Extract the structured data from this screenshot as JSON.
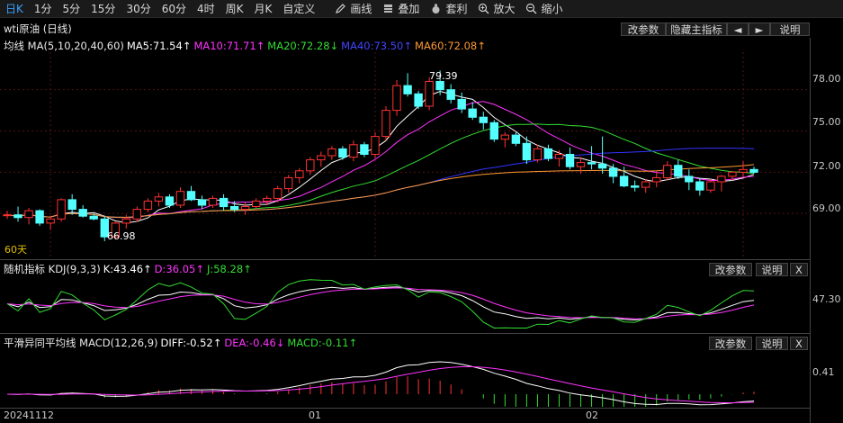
{
  "toolbar": {
    "items": [
      "日K",
      "1分",
      "5分",
      "15分",
      "30分",
      "60分",
      "4时",
      "周K",
      "月K",
      "自定义"
    ],
    "draw": "画线",
    "overlay": "叠加",
    "arbitrage": "套利",
    "zoom_in": "放大",
    "zoom_out": "缩小"
  },
  "main": {
    "title": "wti原油 (日线)",
    "buttons": {
      "params": "改参数",
      "hide": "隐藏主指标",
      "prev": "◄",
      "next": "►",
      "help": "说明"
    },
    "ma_label": "均线 MA(5,10,20,40,60)",
    "ma5": "MA5:71.54↑",
    "ma10": "MA10:71.71↑",
    "ma20": "MA20:72.28↓",
    "ma40": "MA40:73.50↑",
    "ma60": "MA60:72.08↑",
    "high_label": "79.39",
    "low_label": "66.98",
    "days_label": "60天",
    "y_ticks": [
      "78.00",
      "75.00",
      "72.00",
      "69.00"
    ]
  },
  "kdj": {
    "title": "随机指标 KDJ(9,3,3)",
    "k": "K:43.46↑",
    "d": "D:36.05↑",
    "j": "J:58.28↑",
    "buttons": {
      "params": "改参数",
      "help": "说明",
      "close": "X"
    },
    "y_tick": "47.30"
  },
  "macd": {
    "title": "平滑异同平均线 MACD(12,26,9)",
    "diff": "DIFF:-0.52↑",
    "dea": "DEA:-0.46↓",
    "macd": "MACD:-0.11↑",
    "buttons": {
      "params": "改参数",
      "help": "说明",
      "close": "X"
    },
    "y_tick": "0.41"
  },
  "xaxis": {
    "labels": [
      "20241112",
      "01",
      "02"
    ]
  },
  "colors": {
    "up": "#ff3232",
    "down": "#54ffff",
    "ma5": "#ffffff",
    "ma10": "#ff33ff",
    "ma20": "#33dd33",
    "ma40": "#3333ff",
    "ma60": "#ff9933",
    "grid": "#551111"
  },
  "candles": [
    [
      68.9,
      69.2,
      68.6,
      68.9
    ],
    [
      68.9,
      69.5,
      68.4,
      68.7
    ],
    [
      68.7,
      69.4,
      68.2,
      69.2
    ],
    [
      69.2,
      69.3,
      68.1,
      68.3
    ],
    [
      68.3,
      68.8,
      67.8,
      68.6
    ],
    [
      68.6,
      70.1,
      68.4,
      70.0
    ],
    [
      70.0,
      70.4,
      68.9,
      69.3
    ],
    [
      69.3,
      69.6,
      68.7,
      68.8
    ],
    [
      68.8,
      69.0,
      68.5,
      68.6
    ],
    [
      68.6,
      68.8,
      66.98,
      67.3
    ],
    [
      67.3,
      68.4,
      67.1,
      68.3
    ],
    [
      68.3,
      68.9,
      67.9,
      68.6
    ],
    [
      68.6,
      69.5,
      68.4,
      69.3
    ],
    [
      69.3,
      70.1,
      69.1,
      69.9
    ],
    [
      69.9,
      70.5,
      69.5,
      70.2
    ],
    [
      70.2,
      70.4,
      69.4,
      69.6
    ],
    [
      69.6,
      70.9,
      69.4,
      70.6
    ],
    [
      70.6,
      71.0,
      69.9,
      70.0
    ],
    [
      70.0,
      70.3,
      69.3,
      69.6
    ],
    [
      69.6,
      70.3,
      69.4,
      70.1
    ],
    [
      70.1,
      70.4,
      69.2,
      69.5
    ],
    [
      69.5,
      69.9,
      69.1,
      69.3
    ],
    [
      69.3,
      69.8,
      68.9,
      69.5
    ],
    [
      69.5,
      70.1,
      69.2,
      69.9
    ],
    [
      69.9,
      70.3,
      69.6,
      70.1
    ],
    [
      70.1,
      71.0,
      69.8,
      70.8
    ],
    [
      70.8,
      71.8,
      70.5,
      71.6
    ],
    [
      71.6,
      72.3,
      71.2,
      72.1
    ],
    [
      72.1,
      73.1,
      71.8,
      72.9
    ],
    [
      72.9,
      73.5,
      72.4,
      73.2
    ],
    [
      73.2,
      73.9,
      72.9,
      73.7
    ],
    [
      73.7,
      73.9,
      72.9,
      73.1
    ],
    [
      73.1,
      74.3,
      72.8,
      74.0
    ],
    [
      74.0,
      74.2,
      73.1,
      73.3
    ],
    [
      73.3,
      74.9,
      73.0,
      74.6
    ],
    [
      74.6,
      76.8,
      74.3,
      76.5
    ],
    [
      76.5,
      78.7,
      76.1,
      78.3
    ],
    [
      78.3,
      79.2,
      77.5,
      77.7
    ],
    [
      77.7,
      77.9,
      76.6,
      76.8
    ],
    [
      76.8,
      78.9,
      76.5,
      78.6
    ],
    [
      78.6,
      79.39,
      77.6,
      78.0
    ],
    [
      78.0,
      78.4,
      77.0,
      77.3
    ],
    [
      77.3,
      77.8,
      76.3,
      76.6
    ],
    [
      76.6,
      77.1,
      75.8,
      76.0
    ],
    [
      76.0,
      76.4,
      75.1,
      75.6
    ],
    [
      75.6,
      75.8,
      74.2,
      74.4
    ],
    [
      74.4,
      74.9,
      73.8,
      74.7
    ],
    [
      74.7,
      74.9,
      73.9,
      74.1
    ],
    [
      74.1,
      74.6,
      72.6,
      72.9
    ],
    [
      72.9,
      74.0,
      72.7,
      73.7
    ],
    [
      73.7,
      74.0,
      72.8,
      73.0
    ],
    [
      73.0,
      73.6,
      72.4,
      73.3
    ],
    [
      73.3,
      73.8,
      72.2,
      72.4
    ],
    [
      72.4,
      73.1,
      71.9,
      72.7
    ],
    [
      72.7,
      73.9,
      72.2,
      72.6
    ],
    [
      72.6,
      74.6,
      71.9,
      72.3
    ],
    [
      72.3,
      72.6,
      71.2,
      71.7
    ],
    [
      71.7,
      72.4,
      70.9,
      71.0
    ],
    [
      71.0,
      71.4,
      70.6,
      70.9
    ],
    [
      70.9,
      71.5,
      70.5,
      71.3
    ],
    [
      71.3,
      72.1,
      70.9,
      71.6
    ],
    [
      71.6,
      72.8,
      71.4,
      72.5
    ],
    [
      72.5,
      72.9,
      71.5,
      71.7
    ],
    [
      71.7,
      72.2,
      70.7,
      71.3
    ],
    [
      71.3,
      71.6,
      70.3,
      70.7
    ],
    [
      70.7,
      71.5,
      70.5,
      71.3
    ],
    [
      71.3,
      71.8,
      70.6,
      71.7
    ],
    [
      71.7,
      72.1,
      71.4,
      72.0
    ],
    [
      72.0,
      72.8,
      71.6,
      72.2
    ],
    [
      72.2,
      72.4,
      71.9,
      72.0
    ]
  ]
}
